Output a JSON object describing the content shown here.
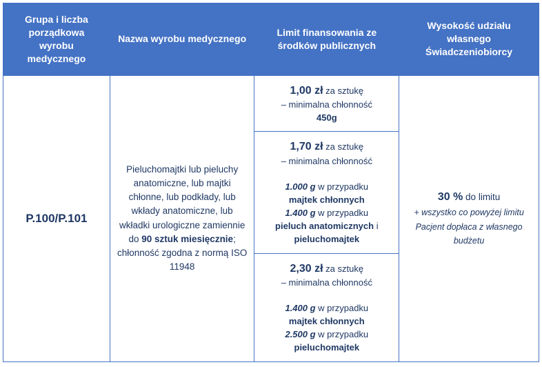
{
  "headers": {
    "col1": "Grupa i liczba porządkowa wyrobu medycznego",
    "col2": "Nazwa wyrobu medycznego",
    "col3": "Limit finansowania ze środków publicznych",
    "col4": "Wysokość udziału własnego Świadczeniobiorcy"
  },
  "code": "P.100/P.101",
  "description": {
    "line1": "Pieluchomajtki lub pieluchy anatomiczne, lub majtki chłonne, lub podkłady, lub wkłady anatomiczne, lub wkładki urologiczne zamiennie do ",
    "bold": "90 sztuk miesięcznie",
    "line2": "; chłonność zgodna z normą ISO 11948"
  },
  "limits": {
    "r1": {
      "price": "1,00 zł",
      "priceTail": " za sztukę",
      "sub1": "– minimalna chłonność",
      "weight": "450g"
    },
    "r2": {
      "price": "1,70 zł",
      "priceTail": " za sztukę",
      "sub1": "– minimalna chłonność",
      "w1": "1.000 g",
      "t1": " w przypadku ",
      "b1": "majtek chłonnych",
      "w2": "1.400 g",
      "t2": " w przypadku ",
      "b2": "pieluch anatomicznych",
      "and": " i ",
      "b3": "pieluchomajtek"
    },
    "r3": {
      "price": "2,30 zł",
      "priceTail": " za sztukę",
      "sub1": "– minimalna chłonność",
      "w1": "1.400 g",
      "t1": " w przypadku ",
      "b1": "majtek chłonnych",
      "w2": "2.500 g",
      "t2": " w przypadku ",
      "b2": "pieluchomajtek"
    }
  },
  "contribution": {
    "big": "30 %",
    "bigTail": " do limitu",
    "italic": "+ wszystko co powyżej limitu Pacjent dopłaca z własnego budżetu"
  },
  "colors": {
    "headerBg": "#4472c4",
    "headerText": "#ffffff",
    "bodyText": "#1f3864",
    "border": "#4472c4"
  }
}
